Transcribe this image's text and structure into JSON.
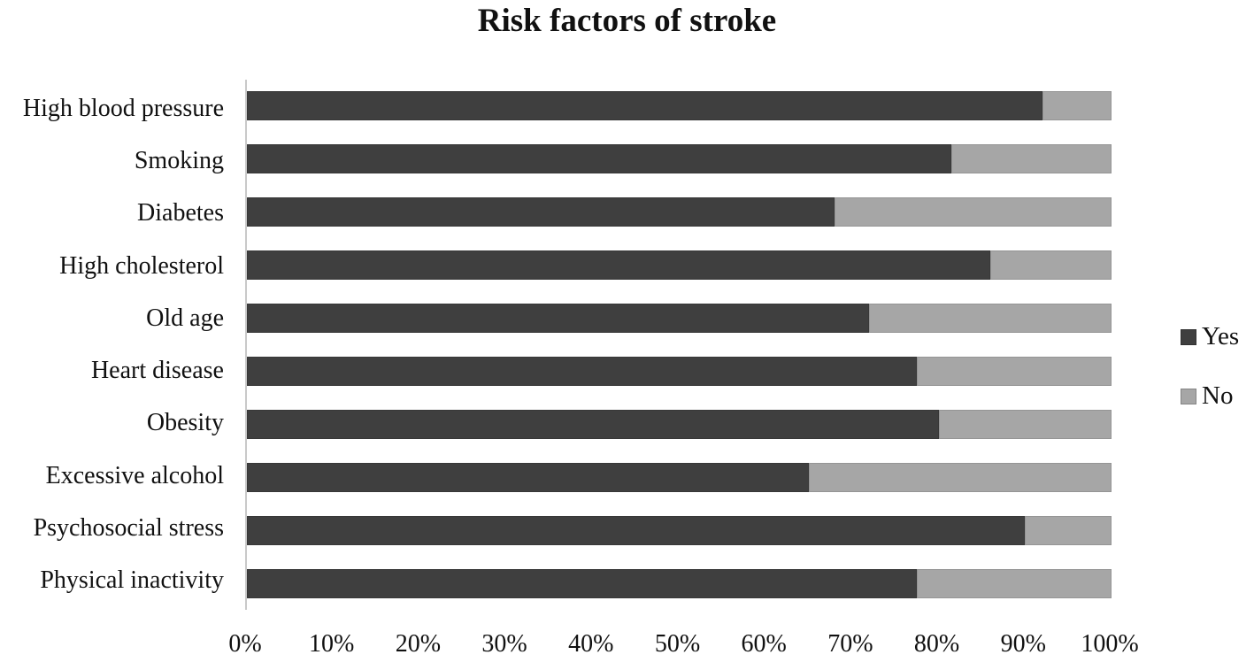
{
  "chart_data": {
    "type": "bar",
    "orientation": "horizontal",
    "stacked": true,
    "percent_stacked": true,
    "title": "Risk factors of stroke",
    "categories": [
      "High blood pressure",
      "Smoking",
      "Diabetes",
      "High cholesterol",
      "Old age",
      "Heart disease",
      "Obesity",
      "Excessive alcohol",
      "Psychosocial stress",
      "Physical inactivity"
    ],
    "series": [
      {
        "name": "Yes",
        "color": "#3f3f3f",
        "values": [
          92,
          81.5,
          68,
          86,
          72,
          77.5,
          80,
          65,
          90,
          77.5
        ]
      },
      {
        "name": "No",
        "color": "#a6a6a6",
        "values": [
          8,
          18.5,
          32,
          14,
          28,
          22.5,
          20,
          35,
          10,
          22.5
        ]
      }
    ],
    "xlabel": "",
    "ylabel": "",
    "xlim": [
      0,
      100
    ],
    "x_tick_labels": [
      "0%",
      "10%",
      "20%",
      "30%",
      "40%",
      "50%",
      "60%",
      "70%",
      "80%",
      "90%",
      "100%"
    ],
    "grid": false,
    "legend_position": "right",
    "axis_line_color": "#c9c9c9",
    "background_color": "#ffffff"
  }
}
